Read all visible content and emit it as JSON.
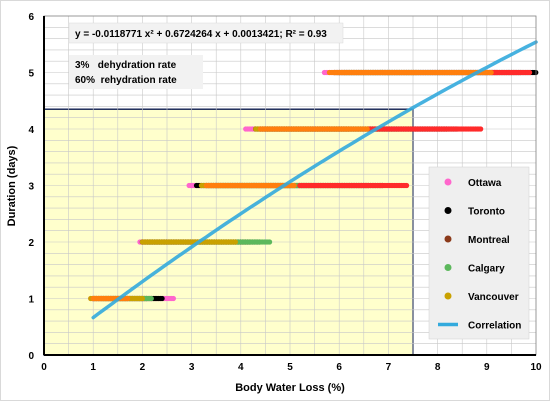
{
  "chart_data": {
    "type": "scatter",
    "xlabel": "Body Water Loss (%)",
    "ylabel": "Duration (days)",
    "xlim": [
      0,
      10
    ],
    "ylim": [
      0,
      6
    ],
    "x_ticks": [
      "0",
      "1",
      "2",
      "3",
      "4",
      "5",
      "6",
      "7",
      "8",
      "9",
      "10"
    ],
    "y_ticks": [
      "0",
      "1",
      "2",
      "3",
      "4",
      "5",
      "6"
    ],
    "grid": true,
    "legend_position": "right",
    "equation": "y = -0.0118771 x² + 0.6724264 x + 0.0013421;   R² = 0.93",
    "notes": [
      "3%   dehydration rate",
      "60%  rehydration rate"
    ],
    "shaded_region": {
      "x": [
        0,
        7.5
      ],
      "y": [
        0,
        4.35
      ],
      "fill": "#ffffcc",
      "stroke": "#1f2d5c"
    },
    "series": [
      {
        "name": "Ottawa",
        "color": "#ff66cc",
        "segments": [
          [
            1,
            0.95,
            2.65
          ],
          [
            2,
            1.95,
            3.2
          ],
          [
            3,
            2.95,
            4.9
          ],
          [
            4,
            4.1,
            6.2
          ],
          [
            5,
            5.7,
            9.2
          ]
        ]
      },
      {
        "name": "Toronto",
        "color": "#000000",
        "segments": [
          [
            1,
            1.0,
            2.4
          ],
          [
            2,
            2.0,
            4.4
          ],
          [
            3,
            3.1,
            6.9
          ],
          [
            4,
            4.3,
            8.4
          ],
          [
            5,
            5.9,
            10.0
          ]
        ]
      },
      {
        "name": "Montreal",
        "color": "#8b3a1a",
        "segments": [
          [
            1,
            1.0,
            2.1
          ],
          [
            2,
            2.0,
            4.2
          ],
          [
            3,
            3.3,
            6.6
          ],
          [
            4,
            4.4,
            8.2
          ],
          [
            5,
            6.0,
            9.7
          ]
        ]
      },
      {
        "name": "Calgary",
        "color": "#5cb85c",
        "segments": [
          [
            1,
            1.2,
            2.2
          ],
          [
            2,
            2.1,
            4.6
          ],
          [
            3,
            3.5,
            5.4
          ],
          [
            4,
            4.5,
            7.2
          ],
          [
            5,
            6.1,
            9.0
          ]
        ]
      },
      {
        "name": "Vancouver",
        "color": "#c9a100",
        "segments": [
          [
            1,
            0.95,
            2.0
          ],
          [
            2,
            2.0,
            3.9
          ],
          [
            3,
            3.2,
            5.0
          ],
          [
            4,
            4.3,
            6.2
          ],
          [
            5,
            5.9,
            7.6
          ]
        ]
      }
    ],
    "overlays": [
      {
        "color": "#ff2b2b",
        "segments": [
          [
            3,
            5.2,
            7.4
          ],
          [
            4,
            6.6,
            8.9
          ],
          [
            5,
            9.1,
            9.9
          ]
        ]
      },
      {
        "color": "#ff7f0e",
        "segments": [
          [
            1,
            1.0,
            1.7
          ],
          [
            3,
            3.3,
            5.1
          ],
          [
            4,
            4.4,
            6.6
          ],
          [
            5,
            5.8,
            9.1
          ]
        ]
      }
    ],
    "correlation": {
      "name": "Correlation",
      "color": "#33aadd",
      "x_range": [
        1,
        10
      ],
      "coefficients": {
        "a": -0.0118771,
        "b": 0.6724264,
        "c": 0.0013421
      }
    }
  }
}
